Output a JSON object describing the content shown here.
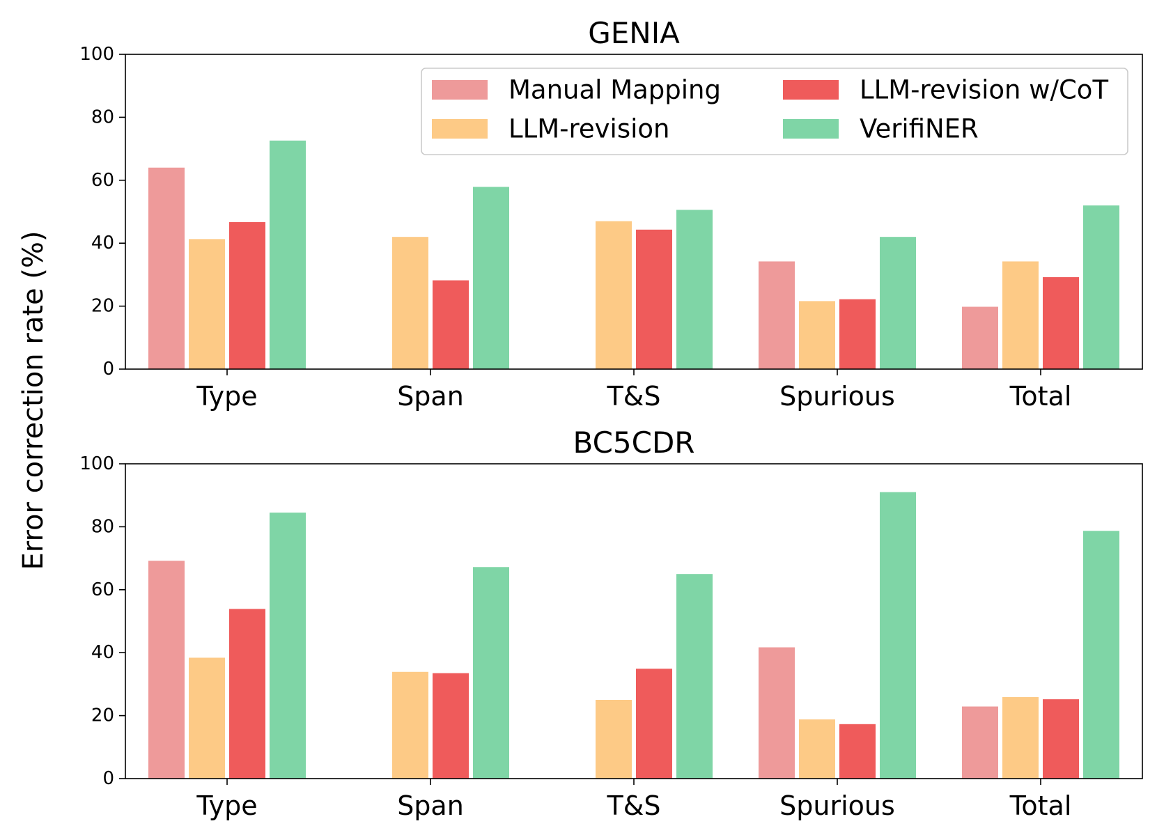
{
  "chart_data": {
    "type": "bar",
    "ylabel": "Error correction rate (%)",
    "ylim": [
      0,
      100
    ],
    "yticks": [
      0,
      20,
      40,
      60,
      80,
      100
    ],
    "grid": false,
    "legend_position": "top-right (upper panel)",
    "categories": [
      "Type",
      "Span",
      "T&S",
      "Spurious",
      "Total"
    ],
    "series_names": [
      "Manual Mapping",
      "LLM-revision",
      "LLM-revision w/CoT",
      "VerifiNER"
    ],
    "colors": [
      "#ee9a9a",
      "#fdca86",
      "#ef5b5b",
      "#7fd5a6"
    ],
    "panels": [
      {
        "title": "GENIA",
        "series": [
          {
            "name": "Manual Mapping",
            "values": [
              64,
              null,
              null,
              34.2,
              19.8
            ]
          },
          {
            "name": "LLM-revision",
            "values": [
              41.3,
              42,
              47,
              21.6,
              34.2
            ]
          },
          {
            "name": "LLM-revision w/CoT",
            "values": [
              46.7,
              28.2,
              44.3,
              22.2,
              29.2
            ]
          },
          {
            "name": "VerifiNER",
            "values": [
              72.6,
              57.9,
              50.6,
              42,
              52
            ]
          }
        ]
      },
      {
        "title": "BC5CDR",
        "series": [
          {
            "name": "Manual Mapping",
            "values": [
              69.2,
              null,
              null,
              41.7,
              22.9
            ]
          },
          {
            "name": "LLM-revision",
            "values": [
              38.4,
              33.9,
              25,
              18.8,
              25.9
            ]
          },
          {
            "name": "LLM-revision w/CoT",
            "values": [
              53.9,
              33.5,
              34.9,
              17.3,
              25.2
            ]
          },
          {
            "name": "VerifiNER",
            "values": [
              84.5,
              67.2,
              65,
              91,
              78.7
            ]
          }
        ]
      }
    ]
  }
}
